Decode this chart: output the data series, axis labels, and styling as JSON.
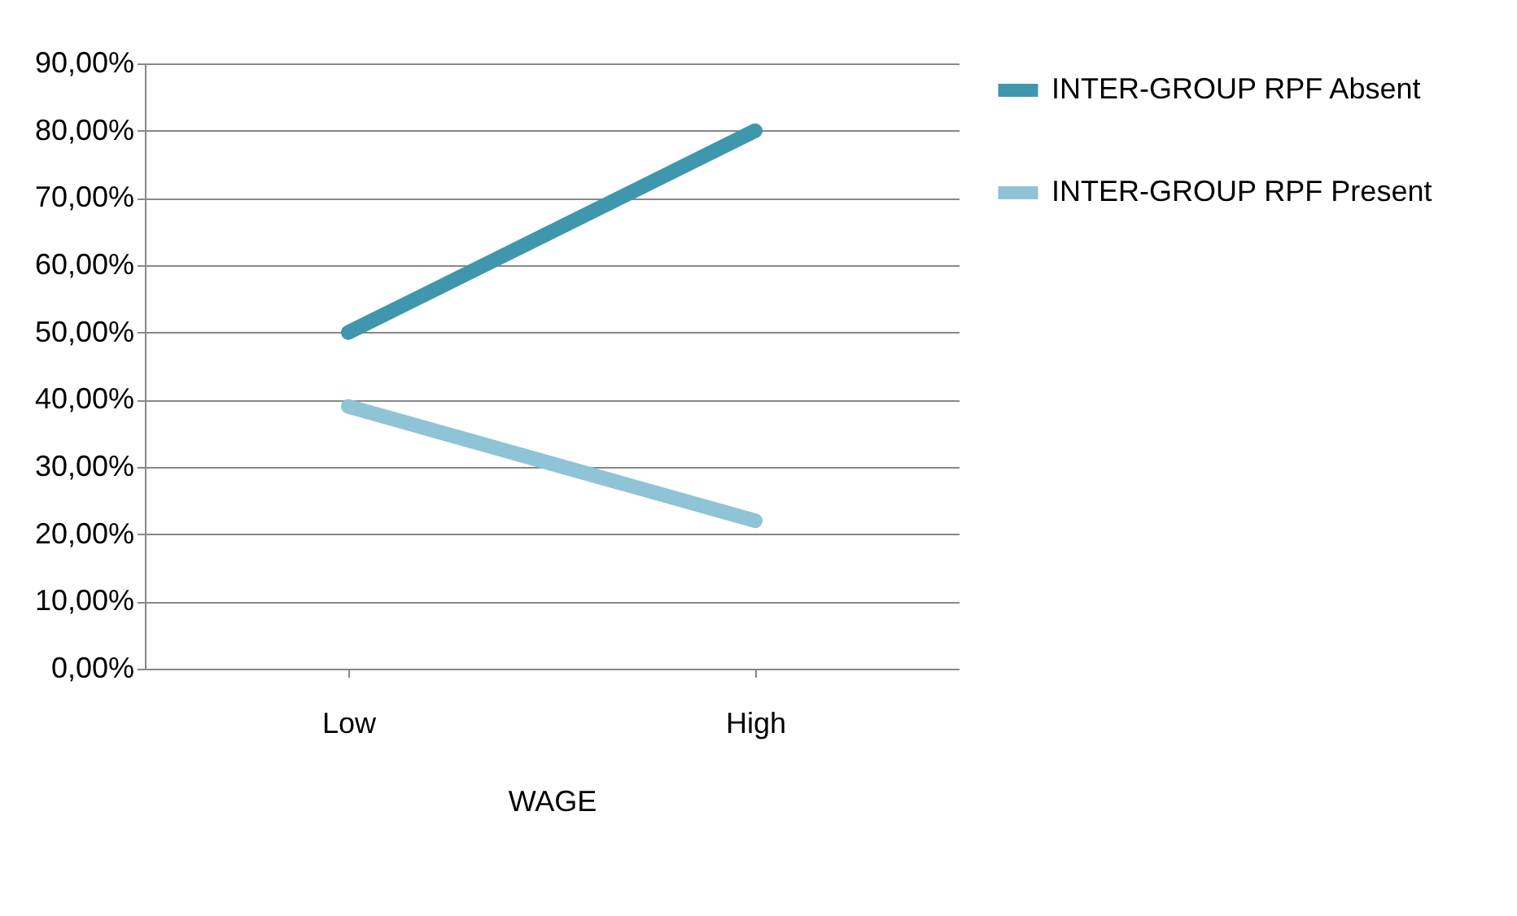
{
  "chart_data": {
    "type": "line",
    "xlabel": "WAGE",
    "categories": [
      "Low",
      "High"
    ],
    "series": [
      {
        "name": "INTER-GROUP RPF Absent",
        "color": "#3f97ad",
        "values": [
          50,
          80
        ]
      },
      {
        "name": "INTER-GROUP RPF Present",
        "color": "#8fc3d6",
        "values": [
          39,
          22
        ]
      }
    ],
    "ylim": [
      0,
      90
    ],
    "yticks": [
      {
        "value": 0,
        "label": "0,00%"
      },
      {
        "value": 10,
        "label": "10,00%"
      },
      {
        "value": 20,
        "label": "20,00%"
      },
      {
        "value": 30,
        "label": "30,00%"
      },
      {
        "value": 40,
        "label": "40,00%"
      },
      {
        "value": 50,
        "label": "50,00%"
      },
      {
        "value": 60,
        "label": "60,00%"
      },
      {
        "value": 70,
        "label": "70,00%"
      },
      {
        "value": 80,
        "label": "80,00%"
      },
      {
        "value": 90,
        "label": "90,00%"
      }
    ],
    "grid": "y",
    "legend": "right",
    "marker": "none",
    "line_style": "solid"
  }
}
